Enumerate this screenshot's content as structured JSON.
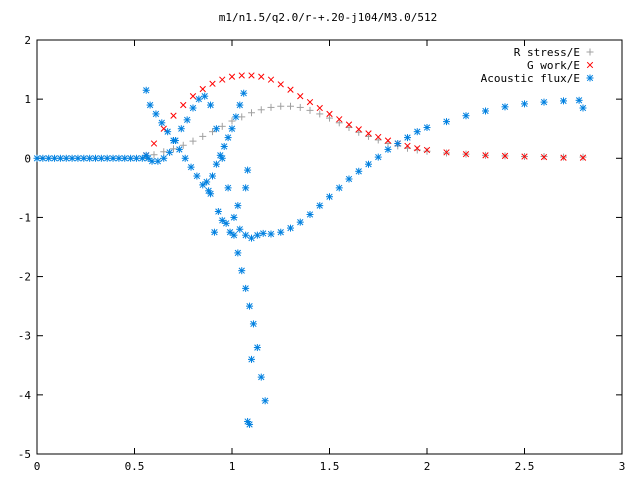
{
  "chart_data": {
    "type": "scatter",
    "title": "m1/n1.5/q2.0/r-+.20-j104/M3.0/512",
    "xlabel": "",
    "ylabel": "",
    "xlim": [
      0,
      3
    ],
    "ylim": [
      -5,
      2
    ],
    "x_ticks": [
      0,
      0.5,
      1,
      1.5,
      2,
      2.5,
      3
    ],
    "x_tick_labels": [
      "0",
      "0.5",
      "1",
      "1.5",
      "2",
      "2.5",
      "3"
    ],
    "y_ticks": [
      -5,
      -4,
      -3,
      -2,
      -1,
      0,
      1,
      2
    ],
    "y_tick_labels": [
      "-5",
      "-4",
      "-3",
      "-2",
      "-1",
      "0",
      "1",
      "2"
    ],
    "grid": false,
    "legend_position": "top-right",
    "series": [
      {
        "name": "R stress/E",
        "marker": "plus",
        "color": "#a0a0a0",
        "x": [
          0.56,
          0.6,
          0.65,
          0.7,
          0.75,
          0.8,
          0.85,
          0.9,
          0.95,
          1.0,
          1.05,
          1.1,
          1.15,
          1.2,
          1.25,
          1.3,
          1.35,
          1.4,
          1.45,
          1.5,
          1.55,
          1.6,
          1.65,
          1.7,
          1.75,
          1.8,
          1.85,
          1.9,
          1.95,
          2.0,
          2.1,
          2.2,
          2.3,
          2.4,
          2.5,
          2.6,
          2.7,
          2.8
        ],
        "y": [
          0.02,
          0.06,
          0.11,
          0.16,
          0.22,
          0.29,
          0.37,
          0.45,
          0.54,
          0.63,
          0.7,
          0.77,
          0.82,
          0.86,
          0.88,
          0.88,
          0.86,
          0.81,
          0.75,
          0.68,
          0.6,
          0.52,
          0.44,
          0.37,
          0.31,
          0.25,
          0.21,
          0.17,
          0.14,
          0.12,
          0.09,
          0.07,
          0.05,
          0.04,
          0.03,
          0.03,
          0.02,
          0.02
        ]
      },
      {
        "name": "G work/E",
        "marker": "cross",
        "color": "#ff0000",
        "x": [
          0.56,
          0.6,
          0.65,
          0.7,
          0.75,
          0.8,
          0.85,
          0.9,
          0.95,
          1.0,
          1.05,
          1.1,
          1.15,
          1.2,
          1.25,
          1.3,
          1.35,
          1.4,
          1.45,
          1.5,
          1.55,
          1.6,
          1.65,
          1.7,
          1.75,
          1.8,
          1.85,
          1.9,
          1.95,
          2.0,
          2.1,
          2.2,
          2.3,
          2.4,
          2.5,
          2.6,
          2.7,
          2.8
        ],
        "y": [
          0.05,
          0.25,
          0.5,
          0.72,
          0.9,
          1.05,
          1.17,
          1.26,
          1.33,
          1.38,
          1.4,
          1.4,
          1.38,
          1.33,
          1.25,
          1.16,
          1.05,
          0.95,
          0.85,
          0.75,
          0.66,
          0.57,
          0.49,
          0.42,
          0.36,
          0.3,
          0.25,
          0.21,
          0.17,
          0.14,
          0.1,
          0.07,
          0.05,
          0.04,
          0.03,
          0.02,
          0.01,
          0.01
        ]
      },
      {
        "name": "Acoustic flux/E",
        "marker": "star",
        "color": "#0080e0",
        "x": [
          0.0,
          0.03,
          0.06,
          0.09,
          0.12,
          0.15,
          0.18,
          0.21,
          0.24,
          0.27,
          0.3,
          0.33,
          0.36,
          0.39,
          0.42,
          0.45,
          0.48,
          0.51,
          0.54,
          0.56,
          0.57,
          0.59,
          0.62,
          0.65,
          0.68,
          0.71,
          0.74,
          0.77,
          0.8,
          0.83,
          0.86,
          0.89,
          0.92,
          0.95,
          0.98,
          1.01,
          1.04,
          1.07,
          1.1,
          1.13,
          1.16,
          1.2,
          1.25,
          1.3,
          1.35,
          1.4,
          1.45,
          1.5,
          1.55,
          1.6,
          1.65,
          1.7,
          1.75,
          1.8,
          1.85,
          1.9,
          1.95,
          2.0,
          2.1,
          2.2,
          2.3,
          2.4,
          2.5,
          2.6,
          2.7,
          2.78,
          2.8,
          0.56,
          0.58,
          0.61,
          0.64,
          0.67,
          0.7,
          0.73,
          0.76,
          0.79,
          0.82,
          0.85,
          0.88,
          0.9,
          0.92,
          0.94,
          0.96,
          0.98,
          1.0,
          1.02,
          1.04,
          1.06,
          1.08,
          1.09,
          1.1,
          0.87,
          0.89,
          0.93,
          0.97,
          1.01,
          1.03,
          1.05,
          1.07,
          1.09,
          1.11,
          1.13,
          1.15,
          1.17,
          0.91,
          0.95,
          0.99,
          1.03,
          1.07,
          1.08
        ],
        "y": [
          0,
          0,
          0,
          0,
          0,
          0,
          0,
          0,
          0,
          0,
          0,
          0,
          0,
          0,
          0,
          0,
          0,
          0,
          0,
          0.05,
          0.0,
          -0.05,
          -0.05,
          0.0,
          0.1,
          0.3,
          0.5,
          0.65,
          0.85,
          1.0,
          1.05,
          0.9,
          0.5,
          0.0,
          -0.5,
          -1.0,
          -1.2,
          -1.3,
          -1.35,
          -1.3,
          -1.27,
          -1.28,
          -1.25,
          -1.18,
          -1.08,
          -0.95,
          -0.8,
          -0.65,
          -0.5,
          -0.35,
          -0.22,
          -0.1,
          0.02,
          0.15,
          0.25,
          0.35,
          0.45,
          0.52,
          0.62,
          0.72,
          0.8,
          0.87,
          0.92,
          0.95,
          0.97,
          0.98,
          0.85,
          1.15,
          0.9,
          0.75,
          0.6,
          0.45,
          0.3,
          0.15,
          0.0,
          -0.15,
          -0.3,
          -0.45,
          -0.55,
          -0.3,
          -0.1,
          0.05,
          0.2,
          0.35,
          0.5,
          0.7,
          0.9,
          1.1,
          -4.45,
          -4.5,
          -3.4,
          -0.4,
          -0.6,
          -0.9,
          -1.1,
          -1.3,
          -1.6,
          -1.9,
          -2.2,
          -2.5,
          -2.8,
          -3.2,
          -3.7,
          -4.1,
          -1.25,
          -1.05,
          -1.25,
          -0.8,
          -0.5,
          -0.2
        ]
      }
    ]
  }
}
